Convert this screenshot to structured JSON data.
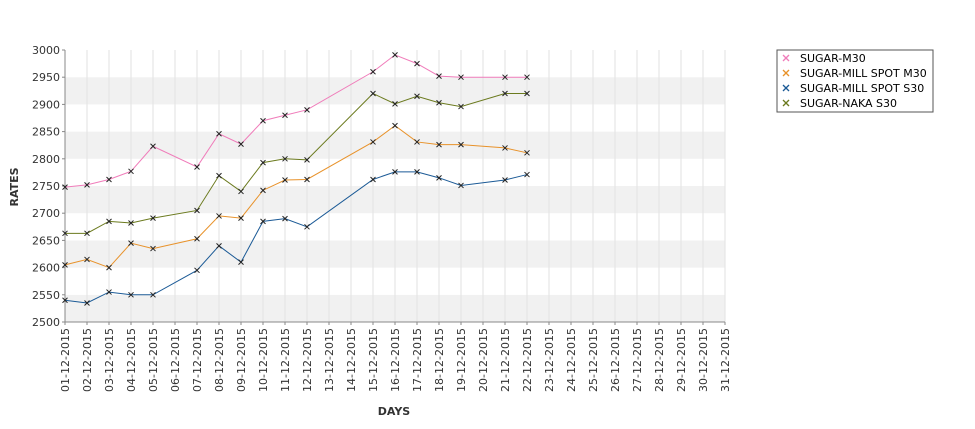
{
  "chart_data": {
    "type": "line",
    "title": "",
    "xlabel": "DAYS",
    "ylabel": "RATES",
    "ylim": [
      2500,
      3000
    ],
    "yticks": [
      2500,
      2550,
      2600,
      2650,
      2700,
      2750,
      2800,
      2850,
      2900,
      2950,
      3000
    ],
    "grid": true,
    "legend_position": "top-right",
    "x": [
      "01-12-2015",
      "02-12-2015",
      "03-12-2015",
      "04-12-2015",
      "05-12-2015",
      "06-12-2015",
      "07-12-2015",
      "08-12-2015",
      "09-12-2015",
      "10-12-2015",
      "11-12-2015",
      "12-12-2015",
      "13-12-2015",
      "14-12-2015",
      "15-12-2015",
      "16-12-2015",
      "17-12-2015",
      "18-12-2015",
      "19-12-2015",
      "20-12-2015",
      "21-12-2015",
      "22-12-2015",
      "23-12-2015",
      "24-12-2015",
      "25-12-2015",
      "26-12-2015",
      "27-12-2015",
      "28-12-2015",
      "29-12-2015",
      "30-12-2015",
      "31-12-2015"
    ],
    "series": [
      {
        "name": "SUGAR-M30",
        "color": "#f07cba",
        "values": [
          2748,
          2752,
          2762,
          2777,
          2823,
          null,
          2785,
          2846,
          2827,
          2870,
          2880,
          2890,
          null,
          null,
          2960,
          2991,
          2975,
          2952,
          2950,
          null,
          2950,
          2950,
          null,
          null,
          null,
          null,
          null,
          null,
          null,
          null,
          null
        ]
      },
      {
        "name": "SUGAR-MILL SPOT M30",
        "color": "#e8922a",
        "values": [
          2605,
          2615,
          2600,
          2645,
          2635,
          null,
          2653,
          2695,
          2691,
          2742,
          2761,
          2762,
          null,
          null,
          2831,
          2861,
          2831,
          2826,
          2826,
          null,
          2820,
          2811,
          null,
          null,
          null,
          null,
          null,
          null,
          null,
          null,
          null
        ]
      },
      {
        "name": "SUGAR-MILL SPOT S30",
        "color": "#1b5a96",
        "values": [
          2540,
          2535,
          2555,
          2550,
          2550,
          null,
          2595,
          2640,
          2610,
          2685,
          2690,
          2675,
          null,
          null,
          2762,
          2776,
          2776,
          2765,
          2751,
          null,
          2761,
          2771,
          null,
          null,
          null,
          null,
          null,
          null,
          null,
          null,
          null
        ]
      },
      {
        "name": "SUGAR-NAKA S30",
        "color": "#6b7a1e",
        "values": [
          2663,
          2663,
          2685,
          2682,
          2691,
          null,
          2705,
          2769,
          2740,
          2793,
          2800,
          2798,
          null,
          null,
          2920,
          2901,
          2915,
          2903,
          2896,
          null,
          2920,
          2920,
          null,
          null,
          null,
          null,
          null,
          null,
          null,
          null,
          null
        ]
      }
    ]
  }
}
